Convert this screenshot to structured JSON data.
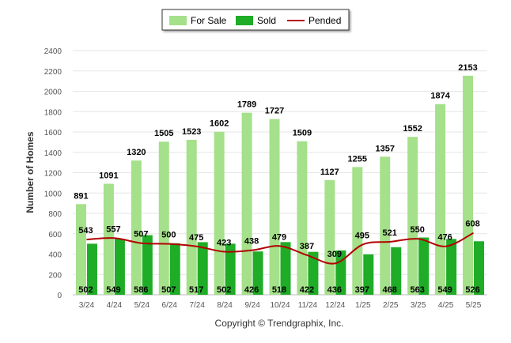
{
  "chart_data": {
    "type": "bar",
    "ylabel": "Number of Homes",
    "ylim": [
      0,
      2400
    ],
    "yticks": [
      0,
      200,
      400,
      600,
      800,
      1000,
      1200,
      1400,
      1600,
      1800,
      2000,
      2200,
      2400
    ],
    "categories": [
      "3/24",
      "4/24",
      "5/24",
      "6/24",
      "7/24",
      "8/24",
      "9/24",
      "10/24",
      "11/24",
      "12/24",
      "1/25",
      "2/25",
      "3/25",
      "4/25",
      "5/25"
    ],
    "series": [
      {
        "name": "For Sale",
        "type": "bar",
        "color": "#a5e08a",
        "values": [
          891,
          1091,
          1320,
          1505,
          1523,
          1602,
          1789,
          1727,
          1509,
          1127,
          1255,
          1357,
          1552,
          1874,
          2153
        ]
      },
      {
        "name": "Sold",
        "type": "bar",
        "color": "#1fac26",
        "values": [
          502,
          549,
          586,
          507,
          517,
          502,
          426,
          518,
          422,
          436,
          397,
          468,
          563,
          549,
          526
        ]
      },
      {
        "name": "Pended",
        "type": "line",
        "color": "#b30000",
        "values": [
          543,
          557,
          507,
          500,
          475,
          423,
          438,
          479,
          387,
          309,
          495,
          521,
          550,
          476,
          608
        ]
      }
    ],
    "legend_position": "top-center",
    "grid": true
  },
  "footer": {
    "copyright": "Copyright © Trendgraphix, Inc."
  }
}
